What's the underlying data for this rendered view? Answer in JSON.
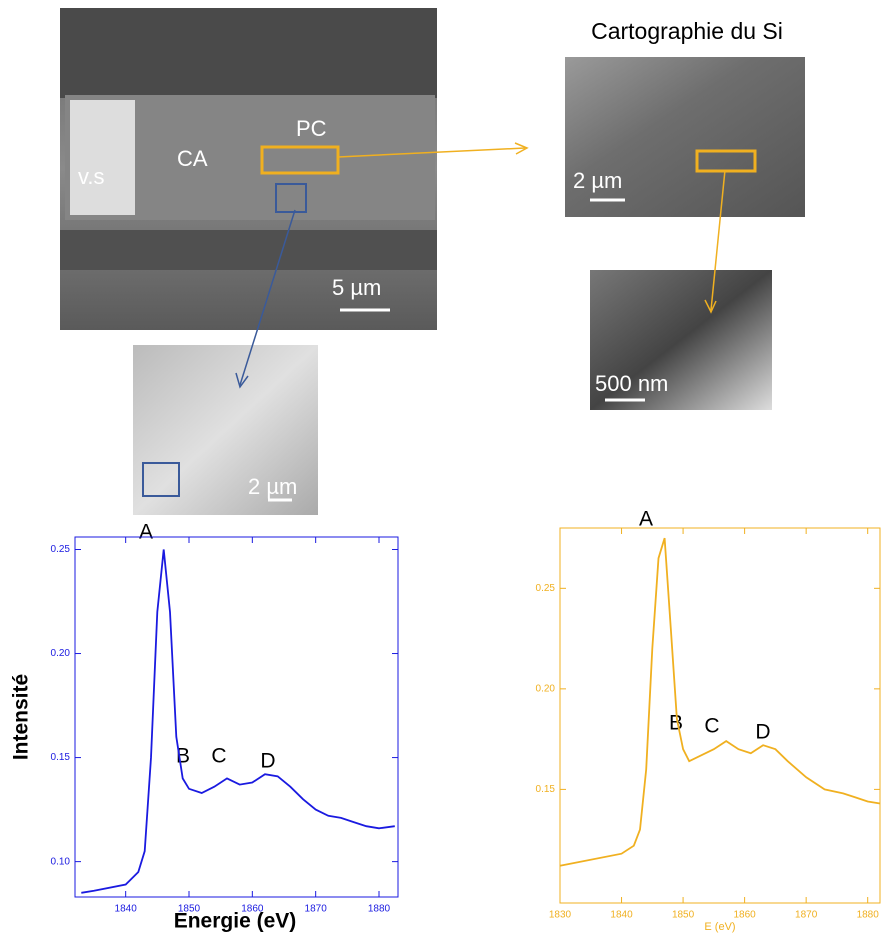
{
  "images": {
    "sem": {
      "labels": [
        "v.s",
        "CA",
        "PC"
      ],
      "scale": "5 µm"
    },
    "si_map": {
      "title": "Cartographie du Si",
      "scale": "2 µm"
    },
    "zoom_map": {
      "scale": "500 nm"
    },
    "blue_map": {
      "scale": "2 µm"
    }
  },
  "chart_data": [
    {
      "type": "line",
      "x_label": "Energie (eV)",
      "y_label": "Intensité",
      "annotations": [
        "A",
        "B",
        "C",
        "D"
      ],
      "color": "#1a1ae0",
      "x": [
        1833,
        1835,
        1840,
        1842,
        1843,
        1844,
        1845,
        1846,
        1847,
        1848,
        1849,
        1850,
        1852,
        1854,
        1856,
        1858,
        1860,
        1862,
        1864,
        1866,
        1868,
        1870,
        1872,
        1874,
        1876,
        1878,
        1880,
        1882.5
      ],
      "values": [
        0.085,
        0.086,
        0.089,
        0.095,
        0.105,
        0.15,
        0.22,
        0.25,
        0.22,
        0.16,
        0.14,
        0.135,
        0.133,
        0.136,
        0.14,
        0.137,
        0.138,
        0.142,
        0.141,
        0.136,
        0.13,
        0.125,
        0.122,
        0.121,
        0.119,
        0.117,
        0.116,
        0.117
      ],
      "xlim": [
        1832,
        1883
      ],
      "ylim": [
        0.083,
        0.256
      ],
      "xticks": [
        1840,
        1850,
        1860,
        1870,
        1880
      ],
      "yticks": [
        {
          "value": 0.1,
          "label": "0.10"
        },
        0.15,
        {
          "value": 0.2,
          "label": "0.20"
        },
        0.25
      ]
    },
    {
      "type": "line",
      "x_label": "E (eV)",
      "annotations": [
        "A",
        "B",
        "C",
        "D"
      ],
      "color": "#f0b020",
      "x": [
        1830,
        1840,
        1842,
        1843,
        1844,
        1845,
        1846,
        1847,
        1848,
        1849,
        1850,
        1851,
        1853,
        1855,
        1857,
        1859,
        1861,
        1863,
        1865,
        1867,
        1870,
        1873,
        1876,
        1878,
        1880,
        1882
      ],
      "values": [
        0.112,
        0.118,
        0.122,
        0.13,
        0.16,
        0.22,
        0.265,
        0.275,
        0.23,
        0.185,
        0.17,
        0.164,
        0.167,
        0.17,
        0.174,
        0.17,
        0.168,
        0.172,
        0.17,
        0.164,
        0.156,
        0.15,
        0.148,
        0.146,
        0.144,
        0.143
      ],
      "xlim": [
        1830,
        1882
      ],
      "ylim": [
        0.0935,
        0.28
      ],
      "xticks": [
        1830,
        1840,
        1850,
        1860,
        1870,
        1880
      ],
      "yticks": [
        0.15,
        {
          "value": 0.2,
          "label": "0.20"
        },
        0.25
      ]
    }
  ]
}
